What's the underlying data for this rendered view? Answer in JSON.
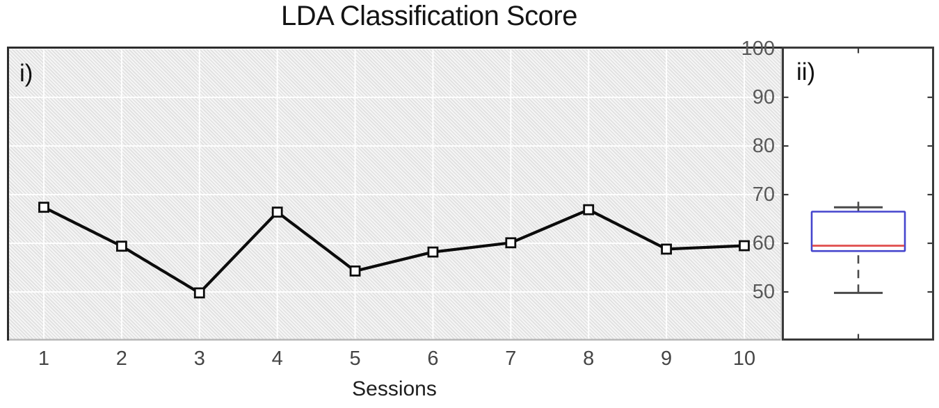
{
  "title": "LDA Classification Score",
  "panel_labels": {
    "line": "i)",
    "box": "ii)"
  },
  "axes": {
    "xlabel": "Sessions",
    "xticks": [
      "1",
      "2",
      "3",
      "4",
      "5",
      "6",
      "7",
      "8",
      "9",
      "10"
    ],
    "yticks": [
      "100",
      "90",
      "80",
      "70",
      "60",
      "50"
    ]
  },
  "chart_data": [
    {
      "type": "line",
      "panel": "i",
      "title": "LDA Classification Score",
      "xlabel": "Sessions",
      "x": [
        1,
        2,
        3,
        4,
        5,
        6,
        7,
        8,
        9,
        10
      ],
      "values": [
        67.4,
        59.4,
        49.8,
        66.4,
        54.3,
        58.2,
        60.1,
        66.9,
        58.8,
        59.5
      ],
      "ylim": [
        40,
        100
      ],
      "yticks": [
        100,
        90,
        80,
        70,
        60,
        50
      ],
      "grid": true,
      "marker": "open-square",
      "line_color": "#0c0c0c",
      "background": "hatched-gray"
    },
    {
      "type": "box",
      "panel": "ii",
      "stats": {
        "whisker_low": 49.8,
        "q1": 58.4,
        "median": 59.5,
        "q3": 66.5,
        "whisker_high": 67.4
      },
      "ylim": [
        40,
        100
      ],
      "yticks": [
        100,
        90,
        80,
        70,
        60,
        50
      ],
      "colors": {
        "box": "#4545cd",
        "median": "#e25858",
        "whisker": "#4a4a4a",
        "frame": "#3a3a3a"
      }
    }
  ]
}
